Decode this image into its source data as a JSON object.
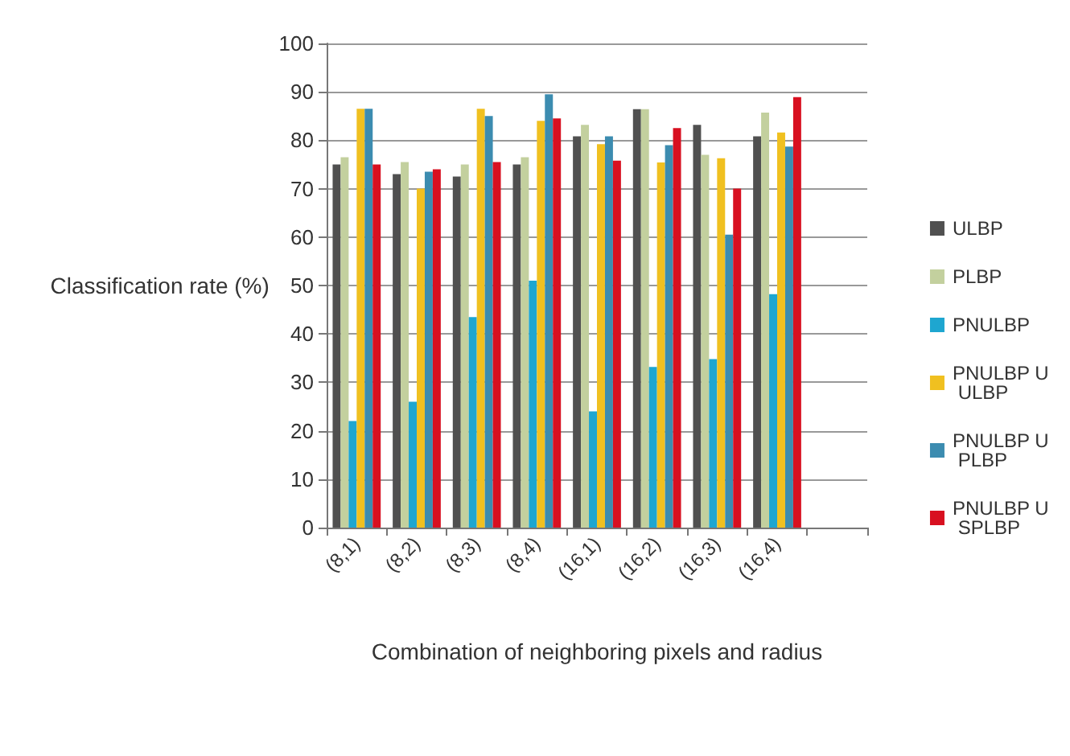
{
  "chart_data": {
    "type": "bar",
    "xlabel": "Combination of neighboring pixels and radius",
    "ylabel": "Classification rate (%)",
    "categories": [
      "(8,1)",
      "(8,2)",
      "(8,3)",
      "(8,4)",
      "(16,1)",
      "(16,2)",
      "(16,3)",
      "(16,4)",
      null
    ],
    "series": [
      {
        "name": "ULBP",
        "color": "#505050",
        "values": [
          75,
          73,
          72.5,
          75,
          80.8,
          86.4,
          83.2,
          80.8,
          null
        ]
      },
      {
        "name": "PLBP",
        "color": "#c3d09e",
        "values": [
          76.5,
          75.5,
          75,
          76.5,
          83.2,
          86.4,
          77,
          85.7,
          null
        ]
      },
      {
        "name": "PNULBP",
        "color": "#1ea6d0",
        "values": [
          22,
          26,
          43.5,
          51,
          24,
          33.2,
          34.8,
          48.2,
          null
        ]
      },
      {
        "name": "PNULBP U ULBP",
        "color": "#f0c020",
        "values": [
          86.5,
          70,
          86.5,
          84,
          79.2,
          75.4,
          76.3,
          81.6,
          null
        ]
      },
      {
        "name": "PNULBP U PLBP",
        "color": "#3c8cb0",
        "values": [
          86.5,
          73.5,
          85,
          89.5,
          80.8,
          79,
          60.5,
          78.7,
          null
        ]
      },
      {
        "name": "PNULBP U SPLBP",
        "color": "#d81020",
        "values": [
          75,
          74,
          75.5,
          84.5,
          75.8,
          82.5,
          70,
          88.9,
          null
        ]
      }
    ],
    "ylim": [
      0,
      100
    ],
    "yticks": [
      0,
      10,
      20,
      30,
      40,
      50,
      60,
      70,
      80,
      90,
      100
    ],
    "grid": "y",
    "legend": "right"
  }
}
